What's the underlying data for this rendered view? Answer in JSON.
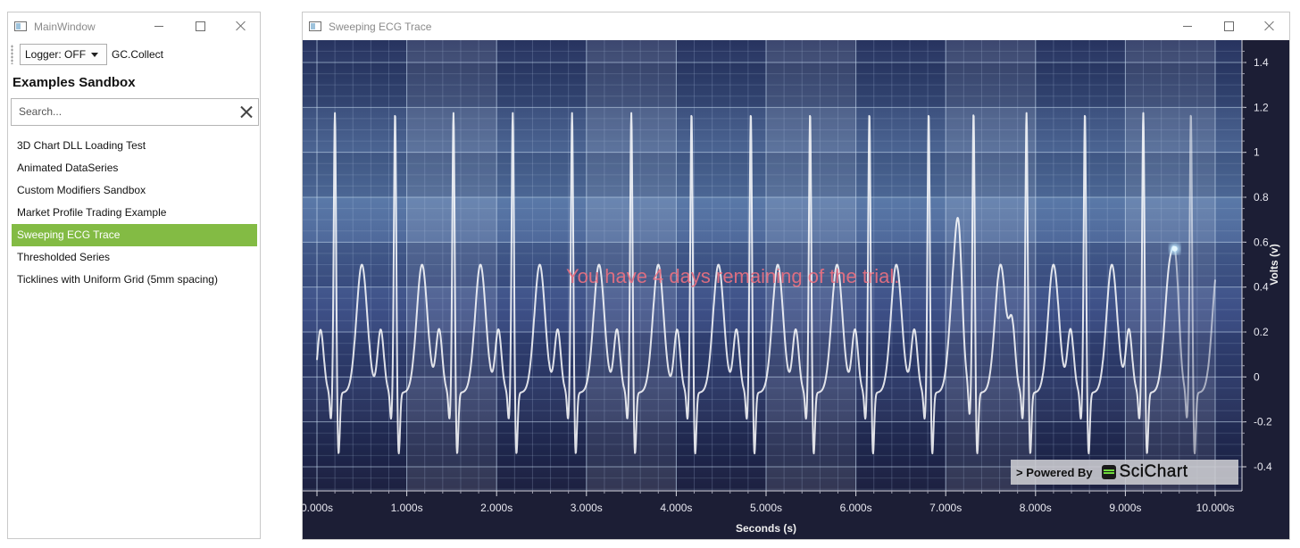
{
  "main_window": {
    "title": "MainWindow",
    "toolbar": {
      "logger_value": "Logger: OFF",
      "gc_label": "GC.Collect"
    },
    "sandbox_title": "Examples Sandbox",
    "search": {
      "placeholder": "Search...",
      "value": ""
    },
    "examples": [
      {
        "label": "3D Chart DLL Loading Test",
        "selected": false
      },
      {
        "label": "Animated DataSeries",
        "selected": false
      },
      {
        "label": "Custom Modifiers Sandbox",
        "selected": false
      },
      {
        "label": "Market Profile Trading Example",
        "selected": false
      },
      {
        "label": "Sweeping ECG Trace",
        "selected": true
      },
      {
        "label": "Thresholded Series",
        "selected": false
      },
      {
        "label": "Ticklines with Uniform Grid (5mm spacing)",
        "selected": false
      }
    ],
    "selected_color": "#83bb44"
  },
  "chart_window": {
    "title": "Sweeping ECG Trace",
    "watermark": "You have 4 days remaining of the trial.",
    "powered_by": "> Powered By",
    "logo_text": "SciChart"
  },
  "chart_data": {
    "type": "line",
    "title": "",
    "xlabel": "Seconds (s)",
    "ylabel": "Volts (v)",
    "xlim": [
      0,
      10
    ],
    "ylim": [
      -0.5,
      1.5
    ],
    "x_ticks": [
      "0.000s",
      "1.000s",
      "2.000s",
      "3.000s",
      "4.000s",
      "5.000s",
      "6.000s",
      "7.000s",
      "8.000s",
      "9.000s",
      "10.000s"
    ],
    "y_ticks": [
      "1.4",
      "1.2",
      "1",
      "0.8",
      "0.6",
      "0.4",
      "0.2",
      "0",
      "-0.2",
      "-0.4"
    ],
    "series": [
      {
        "beat_times_s": [
          0.2,
          0.87,
          1.52,
          2.18,
          2.84,
          3.5,
          4.17,
          4.83,
          5.49,
          6.15,
          6.81,
          7.31,
          7.9,
          8.55,
          9.2,
          9.73
        ],
        "r_peak_v": 1.1,
        "s_trough_v": -0.3,
        "baseline_v": -0.07,
        "t_wave_v": 0.45,
        "sweep_position_s": 9.55
      }
    ],
    "grid": true,
    "y_axis_side": "right",
    "line_color": "#ffffff",
    "background_colors": [
      "#27335f",
      "#5a79a8"
    ]
  }
}
